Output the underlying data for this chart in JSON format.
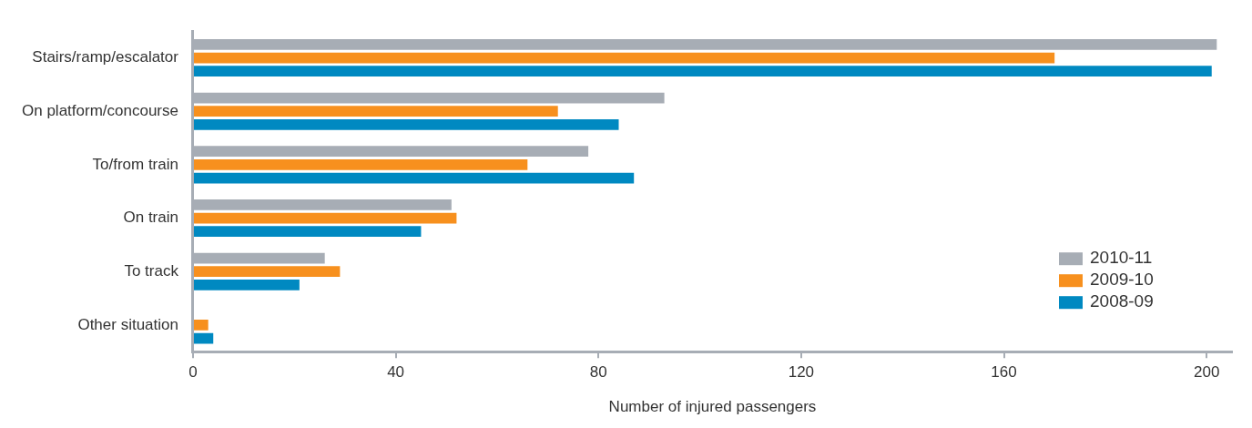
{
  "chart_data": {
    "type": "bar",
    "orientation": "horizontal",
    "xlabel": "Number of injured passengers",
    "categories": [
      "Stairs/ramp/escalator",
      "On platform/concourse",
      "To/from train",
      "On train",
      "To track",
      "Other situation"
    ],
    "series": [
      {
        "name": "2010-11",
        "color": "#a7adb5",
        "values": [
          202,
          93,
          78,
          51,
          26,
          null
        ]
      },
      {
        "name": "2009-10",
        "color": "#f7901e",
        "values": [
          170,
          72,
          66,
          52,
          29,
          3
        ]
      },
      {
        "name": "2008-09",
        "color": "#0089c1",
        "values": [
          201,
          84,
          87,
          45,
          21,
          4
        ]
      }
    ],
    "xlim": [
      0,
      205
    ],
    "xticks": [
      0,
      40,
      80,
      120,
      160,
      200
    ],
    "grid": false,
    "legend": "bottom right"
  }
}
